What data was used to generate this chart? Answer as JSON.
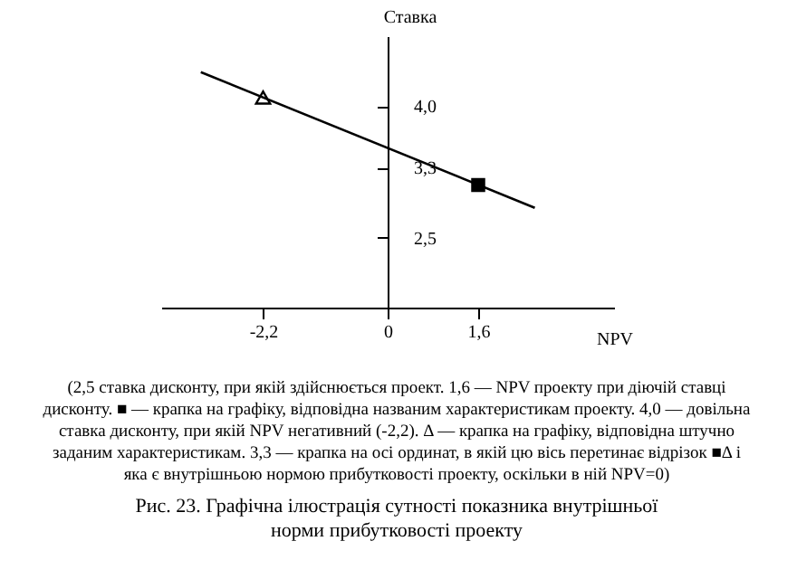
{
  "chart_data": {
    "type": "line",
    "xlabel": "NPV",
    "ylabel": "Ставка",
    "xlim": [
      -4,
      4
    ],
    "ylim": [
      1.7,
      4.8
    ],
    "xticks": [
      {
        "value": -2.2,
        "label": "-2,2"
      },
      0,
      {
        "value": 1.6,
        "label": "1,6"
      }
    ],
    "yticks": [
      {
        "value": 2.5,
        "label": "2,5"
      },
      {
        "value": 3.3,
        "label": "3,3"
      },
      {
        "value": 4.0,
        "label": "4,0"
      }
    ],
    "grid": false,
    "series": [
      {
        "color": "#000000",
        "x": [
          -3.3,
          2.6
        ],
        "values": [
          4.39,
          2.84
        ],
        "line_style": "solid"
      },
      {
        "type": "scatter",
        "marker": "triangle",
        "color": "#000000",
        "x": [
          -2.2
        ],
        "values": [
          4.1
        ]
      },
      {
        "type": "scatter",
        "marker": "square",
        "color": "#000000",
        "x": [
          1.6
        ],
        "values": [
          3.1
        ]
      }
    ],
    "annotations": [
      "(2,5 ставка дисконту, при якій здійснюється проект. 1,6 — NPV проекту при діючій ставці дисконту. ■ — крапка на графіку, відповідна названим характеристикам проекту. 4,0 — довільна ставка дисконту, при якій NPV негативний (-2,2). Δ — крапка на графіку, відповідна штучно заданим характеристикам. 3,3 — крапка на осі ординат, в якій цю вісь перетинає відрізок ■Δ і яка є внутрішньою нормою прибутковості проекту, оскільки в ній NPV=0)",
      "Рис. 23. Графічна ілюстрація сутності показника внутрішньої норми прибутковості проекту"
    ]
  }
}
